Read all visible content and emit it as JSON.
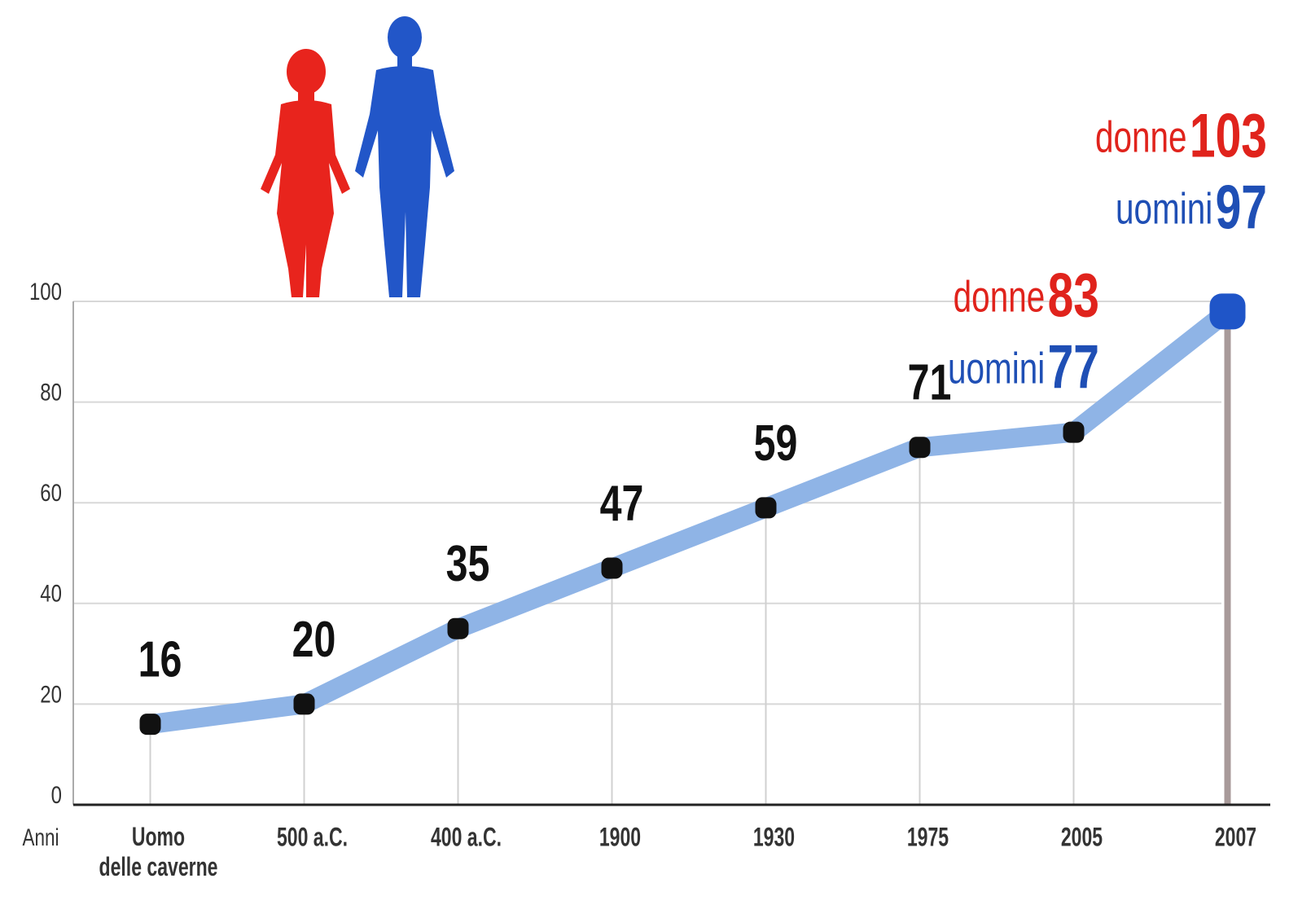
{
  "chart_data": {
    "type": "line",
    "x_label": "Anni",
    "categories": [
      "Uomo\ndelle caverne",
      "500 a.C.",
      "400 a.C.",
      "1900",
      "1930",
      "1975",
      "2005",
      "2007"
    ],
    "values": [
      16,
      20,
      35,
      47,
      59,
      71,
      74,
      98
    ],
    "value_labels": [
      "16",
      "20",
      "35",
      "47",
      "59",
      "71",
      null,
      null
    ],
    "color": "#8fb4e6",
    "marker_color": "#111111",
    "last_marker_color": "#1f55c8",
    "ylim": [
      0,
      100
    ],
    "yticks": [
      0,
      20,
      40,
      60,
      80,
      100
    ],
    "grid": true,
    "annotations": [
      {
        "lines": [
          {
            "label": "donne",
            "value": 83,
            "color": "#e0231c"
          },
          {
            "label": "uomini",
            "value": 77,
            "color": "#1f4fb5"
          }
        ]
      },
      {
        "lines": [
          {
            "label": "donne",
            "value": 103,
            "color": "#e0231c"
          },
          {
            "label": "uomini",
            "value": 97,
            "color": "#1f4fb5"
          }
        ]
      }
    ]
  }
}
